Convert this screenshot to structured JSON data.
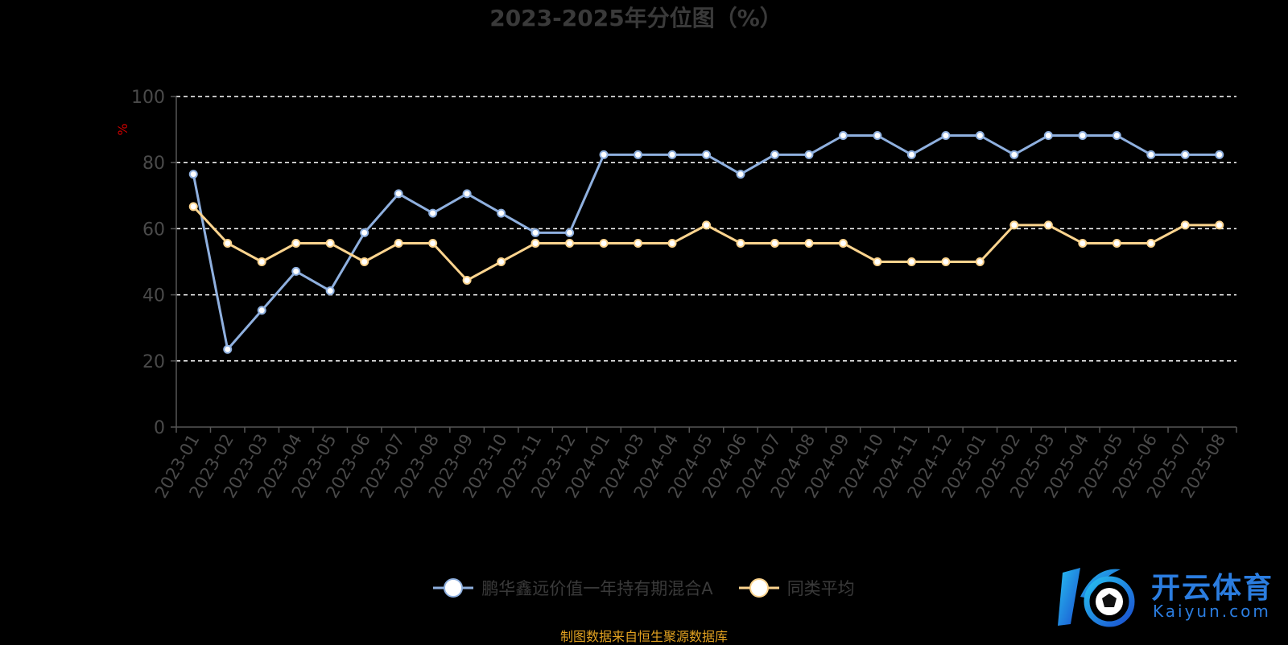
{
  "colors": {
    "background": "#000000",
    "title": "#3a3a3a",
    "axis_label": "#4a4a4a",
    "grid": "#ffffff",
    "ylabel": "#cc0000",
    "series1": "#8fb0df",
    "series2": "#fcd48e",
    "source": "#e0a020",
    "logo_blue": "#2b7de0"
  },
  "chart_data": {
    "type": "line",
    "title": "2023-2025年分位图（%）",
    "xlabel": "",
    "ylabel": "%",
    "ylim": [
      0,
      100
    ],
    "yticks": [
      0,
      20,
      40,
      60,
      80,
      100
    ],
    "grid": true,
    "legend_position": "bottom",
    "categories": [
      "2023-01",
      "2023-02",
      "2023-03",
      "2023-04",
      "2023-05",
      "2023-06",
      "2023-07",
      "2023-08",
      "2023-09",
      "2023-10",
      "2023-11",
      "2023-12",
      "2024-01",
      "2024-03",
      "2024-04",
      "2024-05",
      "2024-06",
      "2024-07",
      "2024-08",
      "2024-09",
      "2024-10",
      "2024-11",
      "2024-12",
      "2025-01",
      "2025-02",
      "2025-03",
      "2025-04",
      "2025-05",
      "2025-06",
      "2025-07",
      "2025-08"
    ],
    "series": [
      {
        "name": "鹏华鑫远价值一年持有期混合A",
        "color": "#8fb0df",
        "values": [
          76.5,
          23.5,
          35.3,
          47.1,
          41.2,
          58.8,
          70.6,
          64.7,
          70.6,
          64.7,
          58.8,
          58.8,
          82.4,
          82.4,
          82.4,
          82.4,
          76.5,
          82.4,
          82.4,
          88.2,
          88.2,
          82.4,
          88.2,
          88.2,
          82.4,
          88.2,
          88.2,
          88.2,
          82.4,
          82.4,
          82.4
        ]
      },
      {
        "name": "同类平均",
        "color": "#fcd48e",
        "values": [
          66.7,
          55.6,
          50.0,
          55.6,
          55.6,
          50.0,
          55.6,
          55.6,
          44.4,
          50.0,
          55.6,
          55.6,
          55.6,
          55.6,
          55.6,
          61.1,
          55.6,
          55.6,
          55.6,
          55.6,
          50.0,
          50.0,
          50.0,
          50.0,
          61.1,
          61.1,
          55.6,
          55.6,
          55.6,
          61.1,
          61.1
        ]
      }
    ]
  },
  "source_text": "制图数据来自恒生聚源数据库",
  "logo": {
    "text": "开云体育",
    "sub": "Kaiyun.com",
    "mark": "K"
  }
}
